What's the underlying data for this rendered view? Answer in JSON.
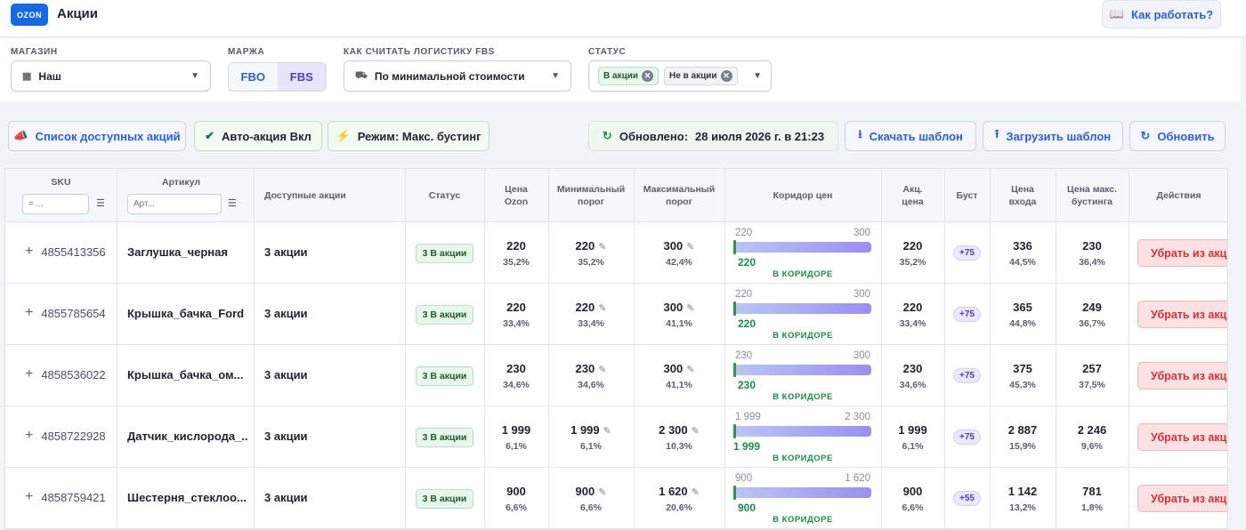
{
  "app": {
    "logo": "OZON",
    "title": "Акции",
    "how_label": "Как работать?"
  },
  "filters": {
    "store_label": "МАГАЗИН",
    "store_value": "Наш",
    "margin_label": "МАРЖА",
    "margin_options": [
      "FBO",
      "FBS"
    ],
    "margin_selected": "FBS",
    "logistics_label": "КАК СЧИТАТЬ ЛОГИСТИКУ FBS",
    "logistics_value": "По минимальной стоимости",
    "status_label": "СТАТУС",
    "status_chips": [
      "В акции",
      "Не в акции"
    ]
  },
  "toolbar": {
    "list_label": "Список доступных акций",
    "auto_label": "Авто-акция Вкл",
    "mode_label": "Режим: Макс. бустинг",
    "updated_label": "Обновлено:",
    "updated_value": "28 июля 2026 г. в 21:23",
    "download_label": "Скачать шаблон",
    "upload_label": "Загрузить шаблон",
    "refresh_label": "Обновить"
  },
  "table": {
    "headers": {
      "sku": "SKU",
      "article": "Артикул",
      "promos": "Доступные акции",
      "status": "Статус",
      "price": "Цена Ozon",
      "min": "Минимальный порог",
      "max": "Максимальный порог",
      "corridor": "Коридор цен",
      "promo_price": "Акц. цена",
      "boost": "Буст",
      "entry": "Цена входа",
      "max_boost": "Цена макс. бустинга",
      "actions": "Действия"
    },
    "sku_placeholder": "= ...",
    "article_placeholder": "Арт...",
    "rows": [
      {
        "sku": "4855413356",
        "article": "Заглушка_черная",
        "promos": "3 акции",
        "status": "3 В акции",
        "price": "220",
        "price_pct": "35,2%",
        "min": "220",
        "min_pct": "35,2%",
        "max": "300",
        "max_pct": "42,4%",
        "c_left": "220",
        "c_right": "300",
        "c_cur": "220",
        "c_label": "В КОРИДОРЕ",
        "c_fill": 1.0,
        "promo_price": "220",
        "promo_pct": "35,2%",
        "boost": "+75",
        "entry": "336",
        "entry_pct": "44,5%",
        "max_boost": "230",
        "max_boost_pct": "36,4%",
        "action": "Убрать из акции"
      },
      {
        "sku": "4855785654",
        "article": "Крышка_бачка_Ford",
        "promos": "3 акции",
        "status": "3 В акции",
        "price": "220",
        "price_pct": "33,4%",
        "min": "220",
        "min_pct": "33,4%",
        "max": "300",
        "max_pct": "41,1%",
        "c_left": "220",
        "c_right": "300",
        "c_cur": "220",
        "c_label": "В КОРИДОРЕ",
        "c_fill": 1.0,
        "promo_price": "220",
        "promo_pct": "33,4%",
        "boost": "+75",
        "entry": "365",
        "entry_pct": "44,8%",
        "max_boost": "249",
        "max_boost_pct": "36,7%",
        "action": "Убрать из акции"
      },
      {
        "sku": "4858536022",
        "article": "Крышка_бачка_ом...",
        "promos": "3 акции",
        "status": "3 В акции",
        "price": "230",
        "price_pct": "34,6%",
        "min": "230",
        "min_pct": "34,6%",
        "max": "300",
        "max_pct": "41,1%",
        "c_left": "230",
        "c_right": "300",
        "c_cur": "230",
        "c_label": "В КОРИДОРЕ",
        "c_fill": 1.0,
        "promo_price": "230",
        "promo_pct": "34,6%",
        "boost": "+75",
        "entry": "375",
        "entry_pct": "45,3%",
        "max_boost": "257",
        "max_boost_pct": "37,5%",
        "action": "Убрать из акции"
      },
      {
        "sku": "4858722928",
        "article": "Датчик_кислорода_...",
        "promos": "3 акции",
        "status": "3 В акции",
        "price": "1 999",
        "price_pct": "6,1%",
        "min": "1 999",
        "min_pct": "6,1%",
        "max": "2 300",
        "max_pct": "10,3%",
        "c_left": "1 999",
        "c_right": "2 300",
        "c_cur": "1 999",
        "c_label": "В КОРИДОРЕ",
        "c_fill": 1.0,
        "promo_price": "1 999",
        "promo_pct": "6,1%",
        "boost": "+75",
        "entry": "2 887",
        "entry_pct": "15,9%",
        "max_boost": "2 246",
        "max_boost_pct": "9,6%",
        "action": "Убрать из акции"
      },
      {
        "sku": "4858759421",
        "article": "Шестерня_стеклоо...",
        "promos": "3 акции",
        "status": "3 В акции",
        "price": "900",
        "price_pct": "6,6%",
        "min": "900",
        "min_pct": "6,6%",
        "max": "1 620",
        "max_pct": "20,6%",
        "c_left": "900",
        "c_right": "1 620",
        "c_cur": "900",
        "c_label": "В КОРИДОРЕ",
        "c_fill": 1.0,
        "promo_price": "900",
        "promo_pct": "6,6%",
        "boost": "+55",
        "entry": "1 142",
        "entry_pct": "13,2%",
        "max_boost": "781",
        "max_boost_pct": "1,8%",
        "action": "Убрать из акции"
      }
    ]
  }
}
